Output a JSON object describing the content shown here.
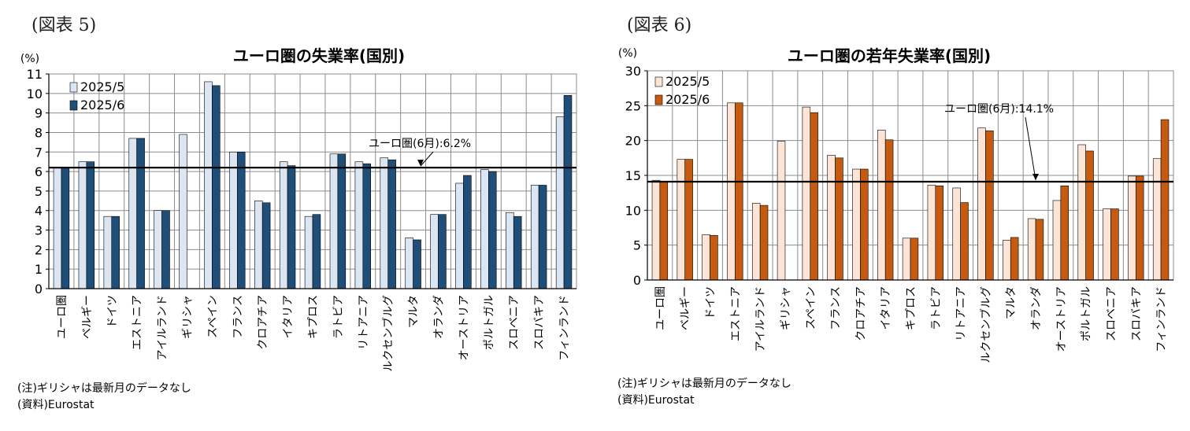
{
  "fig5": {
    "label": "(図表 5)",
    "note": "(注)ギリシャは最新月のデータなし",
    "source": "(資料)Eurostat"
  },
  "fig6": {
    "label": "(図表 6)",
    "note": "(注)ギリシャは最新月のデータなし",
    "source": "(資料)Eurostat"
  },
  "colors": {
    "fig5_prev": "#dce6f2",
    "fig5_curr": "#1f4e79",
    "fig6_prev": "#fce4d6",
    "fig6_curr": "#c55a11",
    "bar_stroke": "#000000",
    "grid": "#8c8c8c"
  },
  "chart_data": [
    {
      "type": "bar",
      "title": "ユーロ圏の失業率(国別)",
      "unit": "(%)",
      "ylim": [
        0,
        11
      ],
      "yticks": [
        0,
        1,
        2,
        3,
        4,
        5,
        6,
        7,
        8,
        9,
        10,
        11
      ],
      "grid": true,
      "legend_position": "top-left",
      "categories": [
        "ユーロ圏",
        "ベルギー",
        "ドイツ",
        "エストニア",
        "アイルランド",
        "ギリシャ",
        "スペイン",
        "フランス",
        "クロアチア",
        "イタリア",
        "キプロス",
        "ラトビア",
        "リトアニア",
        "ルクセンブルグ",
        "マルタ",
        "オランダ",
        "オーストリア",
        "ポルトガル",
        "スロベニア",
        "スロバキア",
        "フィンランド"
      ],
      "series": [
        {
          "name": "2025/5",
          "values": [
            6.2,
            6.5,
            3.7,
            7.7,
            4.0,
            7.9,
            10.6,
            7.0,
            4.5,
            6.5,
            3.7,
            6.9,
            6.5,
            6.7,
            2.6,
            3.8,
            5.4,
            6.1,
            3.9,
            5.3,
            8.8
          ]
        },
        {
          "name": "2025/6",
          "values": [
            6.2,
            6.5,
            3.7,
            7.7,
            4.0,
            null,
            10.4,
            7.0,
            4.4,
            6.3,
            3.8,
            6.9,
            6.4,
            6.6,
            2.5,
            3.8,
            5.8,
            6.0,
            3.7,
            5.3,
            9.9
          ]
        }
      ],
      "reference_line": {
        "value": 6.2,
        "label": "ユーロ圏(6月):6.2%"
      }
    },
    {
      "type": "bar",
      "title": "ユーロ圏の若年失業率(国別)",
      "unit": "(%)",
      "ylim": [
        0,
        30
      ],
      "yticks": [
        0,
        5,
        10,
        15,
        20,
        25,
        30
      ],
      "grid": true,
      "legend_position": "top-left",
      "categories": [
        "ユーロ圏",
        "ベルギー",
        "ドイツ",
        "エストニア",
        "アイルランド",
        "ギリシャ",
        "スペイン",
        "フランス",
        "クロアチア",
        "イタリア",
        "キプロス",
        "ラトビア",
        "リトアニア",
        "ルクセンブルグ",
        "マルタ",
        "オランダ",
        "オーストリア",
        "ポルトガル",
        "スロベニア",
        "スロバキア",
        "フィンランド"
      ],
      "series": [
        {
          "name": "2025/5",
          "values": [
            14.3,
            17.3,
            6.5,
            25.4,
            11.0,
            19.9,
            24.8,
            17.9,
            15.9,
            21.5,
            6.0,
            13.6,
            13.2,
            21.8,
            5.7,
            8.8,
            11.4,
            19.4,
            10.2,
            14.9,
            17.4
          ]
        },
        {
          "name": "2025/6",
          "values": [
            14.1,
            17.3,
            6.4,
            25.4,
            10.7,
            null,
            24.0,
            17.5,
            15.9,
            20.1,
            6.0,
            13.5,
            11.1,
            21.4,
            6.1,
            8.7,
            13.5,
            18.5,
            10.2,
            14.9,
            23.0
          ]
        }
      ],
      "reference_line": {
        "value": 14.1,
        "label": "ユーロ圏(6月):14.1%"
      }
    }
  ]
}
